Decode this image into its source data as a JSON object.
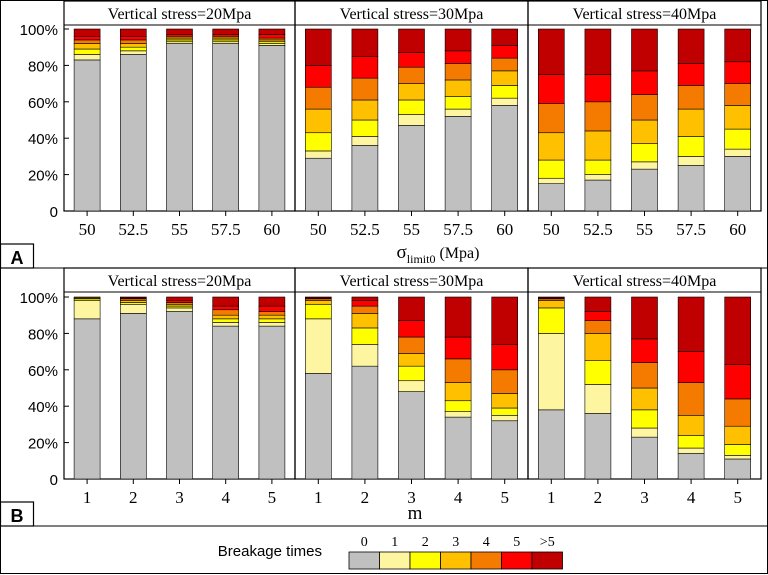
{
  "breakage_colors": [
    "#c0c0c0",
    "#fef5a1",
    "#ffff00",
    "#ffc000",
    "#f57a00",
    "#ff0000",
    "#c00000"
  ],
  "legend": {
    "title": "Breakage times",
    "labels": [
      "0",
      "1",
      "2",
      "3",
      "4",
      "5",
      ">5"
    ]
  },
  "panel_letters": {
    "a": "A",
    "b": "B"
  },
  "axis_labels": {
    "a_main": "σ",
    "a_sub": "limit0",
    "a_unit": "(Mpa)",
    "b": "m"
  },
  "chart_data": [
    {
      "type": "bar",
      "stacked": true,
      "panel": "A",
      "xlabel": "σlimit0 (Mpa)",
      "ylabel": "",
      "ylim": [
        0,
        100
      ],
      "yticks": [
        "0",
        "20%",
        "40%",
        "60%",
        "80%",
        "100%"
      ],
      "series_names": [
        "0",
        "1",
        "2",
        "3",
        "4",
        "5",
        ">5"
      ],
      "groups": [
        {
          "title": "Vertical stress=20Mpa",
          "categories": [
            "50",
            "52.5",
            "55",
            "57.5",
            "60"
          ],
          "stacks": [
            [
              83,
              3,
              3,
              3,
              2,
              2,
              4
            ],
            [
              86,
              2,
              2,
              2,
              2,
              2,
              4
            ],
            [
              92,
              1,
              1,
              1,
              1,
              1,
              3
            ],
            [
              92,
              1,
              1,
              1,
              1,
              1,
              3
            ],
            [
              91,
              1,
              1,
              1,
              1,
              2,
              3
            ]
          ]
        },
        {
          "title": "Vertical stress=30Mpa",
          "categories": [
            "50",
            "52.5",
            "55",
            "57.5",
            "60"
          ],
          "stacks": [
            [
              29,
              4,
              10,
              13,
              12,
              12,
              20
            ],
            [
              36,
              5,
              9,
              11,
              12,
              12,
              15
            ],
            [
              47,
              6,
              8,
              9,
              9,
              8,
              13
            ],
            [
              52,
              4,
              7,
              9,
              9,
              7,
              12
            ],
            [
              58,
              4,
              7,
              8,
              7,
              7,
              9
            ]
          ]
        },
        {
          "title": "Vertical stress=40Mpa",
          "categories": [
            "50",
            "52.5",
            "55",
            "57.5",
            "60"
          ],
          "stacks": [
            [
              15,
              3,
              10,
              15,
              16,
              16,
              25
            ],
            [
              17,
              3,
              8,
              16,
              16,
              15,
              25
            ],
            [
              23,
              4,
              10,
              13,
              14,
              13,
              23
            ],
            [
              25,
              5,
              11,
              15,
              13,
              12,
              19
            ],
            [
              30,
              4,
              11,
              13,
              12,
              12,
              18
            ]
          ]
        }
      ]
    },
    {
      "type": "bar",
      "stacked": true,
      "panel": "B",
      "xlabel": "m",
      "ylabel": "",
      "ylim": [
        0,
        100
      ],
      "yticks": [
        "0",
        "20%",
        "40%",
        "60%",
        "80%",
        "100%"
      ],
      "series_names": [
        "0",
        "1",
        "2",
        "3",
        "4",
        "5",
        ">5"
      ],
      "groups": [
        {
          "title": "Vertical stress=20Mpa",
          "categories": [
            "1",
            "2",
            "3",
            "4",
            "5"
          ],
          "stacks": [
            [
              88,
              10,
              1,
              0.5,
              0.5,
              0,
              0
            ],
            [
              91,
              5,
              1,
              1,
              1,
              0.5,
              0.5
            ],
            [
              92,
              2,
              1,
              1,
              1,
              1,
              2
            ],
            [
              84,
              2,
              2,
              2,
              3,
              2,
              5
            ],
            [
              84,
              2,
              2,
              2,
              2,
              3,
              5
            ]
          ]
        },
        {
          "title": "Vertical stress=30Mpa",
          "categories": [
            "1",
            "2",
            "3",
            "4",
            "5"
          ],
          "stacks": [
            [
              58,
              30,
              8,
              2,
              1,
              0.5,
              0.5
            ],
            [
              62,
              12,
              9,
              8,
              4,
              3,
              2
            ],
            [
              48,
              6,
              8,
              7,
              9,
              9,
              13
            ],
            [
              34,
              3,
              6,
              10,
              13,
              12,
              22
            ],
            [
              32,
              3,
              4,
              8,
              13,
              14,
              26
            ]
          ]
        },
        {
          "title": "Vertical stress=40Mpa",
          "categories": [
            "1",
            "2",
            "3",
            "4",
            "5"
          ],
          "stacks": [
            [
              38,
              42,
              14,
              4,
              1,
              0.5,
              0.5
            ],
            [
              36,
              16,
              13,
              15,
              7,
              5,
              8
            ],
            [
              23,
              5,
              10,
              12,
              14,
              13,
              23
            ],
            [
              14,
              3,
              7,
              11,
              18,
              17,
              30
            ],
            [
              11,
              2,
              6,
              10,
              15,
              19,
              37
            ]
          ]
        }
      ]
    }
  ]
}
